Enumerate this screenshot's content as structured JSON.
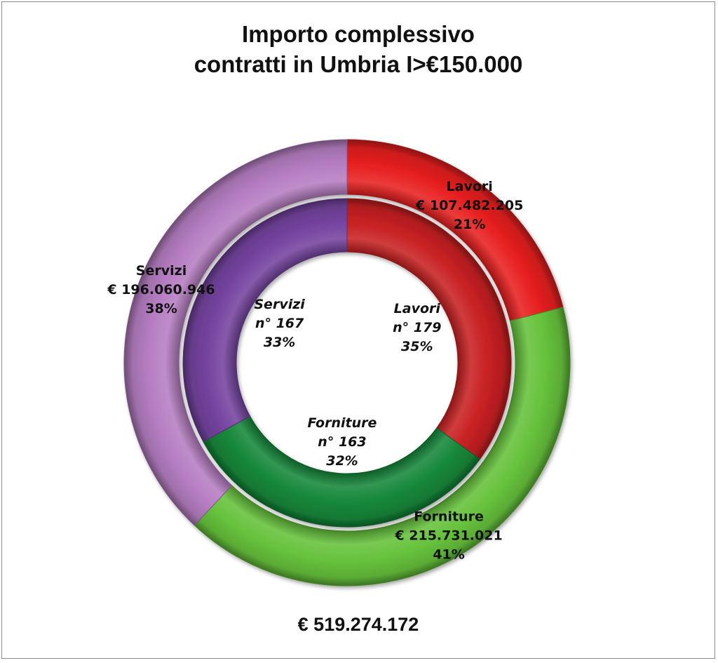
{
  "chart_data": {
    "type": "pie",
    "subtype": "double-doughnut",
    "title_lines": [
      "Importo complessivo",
      "contratti in Umbria I>€150.000"
    ],
    "outer_ring": {
      "metric": "importo",
      "segments": [
        {
          "name": "Lavori",
          "value_label": "€ 107.482.205",
          "percent": 21,
          "color": "#e82020"
        },
        {
          "name": "Forniture",
          "value_label": "€ 215.731.021",
          "percent": 41,
          "color": "#66c23c"
        },
        {
          "name": "Servizi",
          "value_label": "€ 196.060.946",
          "percent": 38,
          "color": "#b67ec2"
        }
      ]
    },
    "inner_ring": {
      "metric": "numero",
      "segments": [
        {
          "name": "Lavori",
          "value_label": "n° 179",
          "percent": 35,
          "color": "#c92123"
        },
        {
          "name": "Forniture",
          "value_label": "n° 163",
          "percent": 32,
          "color": "#16883a"
        },
        {
          "name": "Servizi",
          "value_label": "n° 167",
          "percent": 33,
          "color": "#7544a0"
        }
      ]
    },
    "total_label": "€ 519.274.172",
    "legend": "none"
  }
}
